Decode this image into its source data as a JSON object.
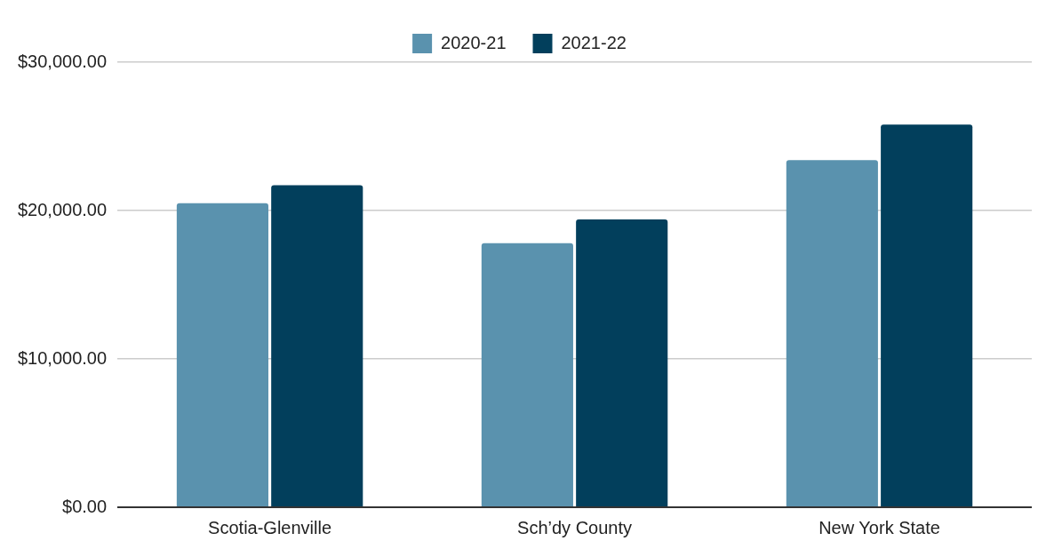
{
  "chart_data": {
    "type": "bar",
    "categories": [
      "Scotia-Glenville",
      "Sch’dy County",
      "New York State"
    ],
    "series": [
      {
        "name": "2020-21",
        "color": "#5a92ae",
        "values": [
          20500,
          17800,
          23400
        ]
      },
      {
        "name": "2021-22",
        "color": "#023f5c",
        "values": [
          21700,
          19400,
          25800
        ]
      }
    ],
    "ylim": [
      0,
      30000
    ],
    "yticks": [
      {
        "value": 0,
        "label": "$0.00"
      },
      {
        "value": 10000,
        "label": "$10,000.00"
      },
      {
        "value": 20000,
        "label": "$20,000.00"
      },
      {
        "value": 30000,
        "label": "$30,000.00"
      }
    ],
    "grid": "y",
    "legend": "top"
  }
}
